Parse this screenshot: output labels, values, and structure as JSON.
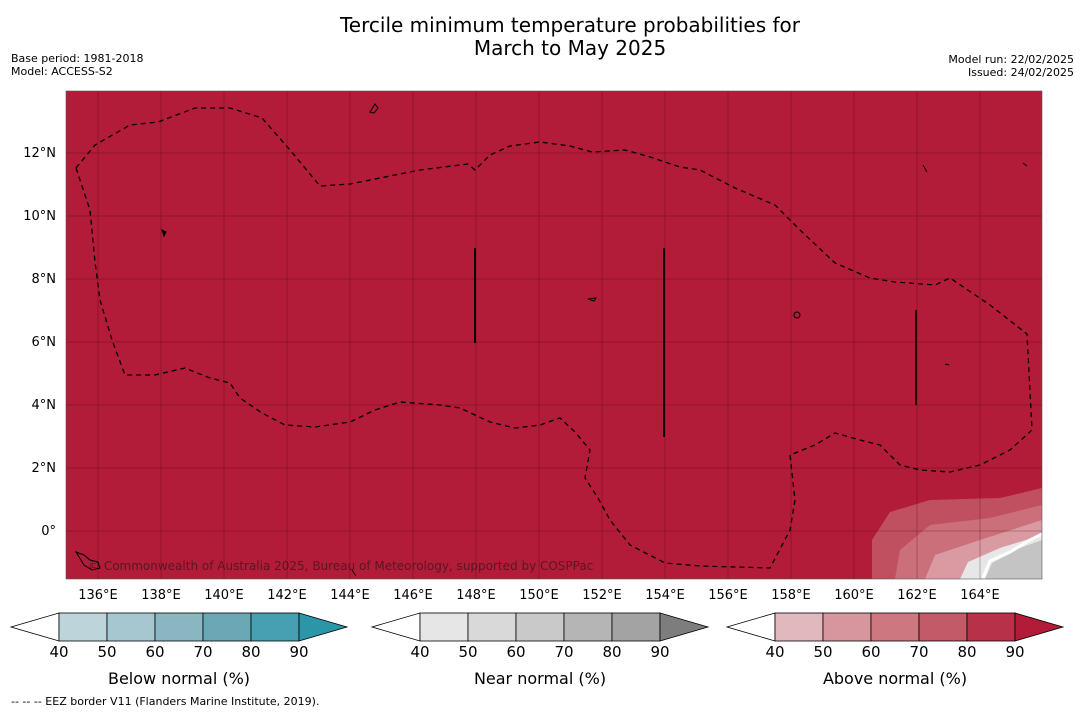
{
  "title_line1": "Tercile minimum temperature probabilities for",
  "title_line2": "March to May 2025",
  "left_meta": {
    "base_period": "Base period: 1981-2018",
    "model": "Model: ACCESS-S2"
  },
  "right_meta": {
    "model_run": "Model run: 22/02/2025",
    "issued": "Issued: 24/02/2025"
  },
  "map": {
    "fill_color": "#b21c38",
    "lat_labels": [
      "12°N",
      "10°N",
      "8°N",
      "6°N",
      "4°N",
      "2°N",
      "0°"
    ],
    "lon_labels": [
      "136°E",
      "138°E",
      "140°E",
      "142°E",
      "144°E",
      "146°E",
      "148°E",
      "150°E",
      "152°E",
      "154°E",
      "156°E",
      "158°E",
      "160°E",
      "162°E",
      "164°E"
    ],
    "copyright": "© Commonwealth of Australia 2025, Bureau of Meteorology, supported by COSPPac",
    "eez_line_style": "dashed"
  },
  "colorbars": [
    {
      "title": "Below normal (%)",
      "ticks": [
        "40",
        "50",
        "60",
        "70",
        "80",
        "90"
      ],
      "colors": [
        "#ffffff",
        "#bcd4da",
        "#a6c7cf",
        "#8ab6c1",
        "#6aa8b6",
        "#47a0b1",
        "#2a96a8"
      ]
    },
    {
      "title": "Near normal (%)",
      "ticks": [
        "40",
        "50",
        "60",
        "70",
        "80",
        "90"
      ],
      "colors": [
        "#ffffff",
        "#e6e6e6",
        "#d9d9d9",
        "#c9c9c9",
        "#b5b5b5",
        "#a3a3a3",
        "#7d7d7d"
      ]
    },
    {
      "title": "Above normal (%)",
      "ticks": [
        "40",
        "50",
        "60",
        "70",
        "80",
        "90"
      ],
      "colors": [
        "#ffffff",
        "#e1b8be",
        "#d7969e",
        "#cd7880",
        "#c25a68",
        "#b73249",
        "#b21c38"
      ]
    }
  ],
  "footnote": "--  --  -- EEZ border V11 (Flanders Marine Institute, 2019)."
}
